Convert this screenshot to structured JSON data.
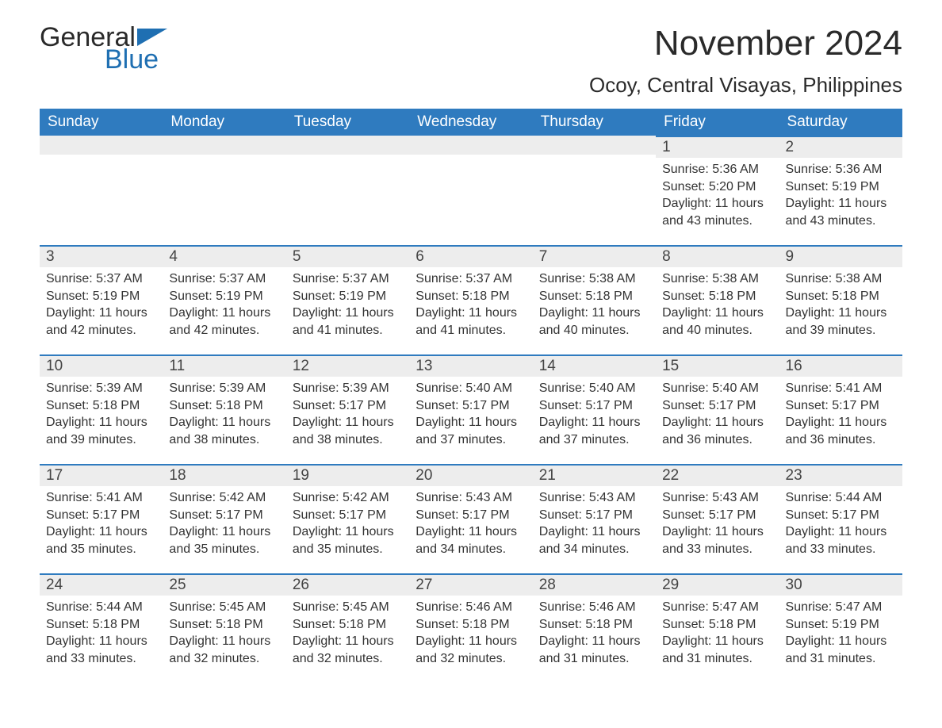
{
  "brand": {
    "word1": "General",
    "word2": "Blue",
    "flag_color": "#1f6fb2"
  },
  "title": "November 2024",
  "location": "Ocoy, Central Visayas, Philippines",
  "colors": {
    "header_bg": "#2f7bbf",
    "header_text": "#ffffff",
    "daybar_bg": "#ededed",
    "daybar_border": "#2f7bbf",
    "body_text": "#333333",
    "page_bg": "#ffffff"
  },
  "fonts": {
    "title_pt": 44,
    "location_pt": 26,
    "weekday_pt": 19,
    "daynum_pt": 19,
    "body_pt": 16
  },
  "weekdays": [
    "Sunday",
    "Monday",
    "Tuesday",
    "Wednesday",
    "Thursday",
    "Friday",
    "Saturday"
  ],
  "labels": {
    "sunrise": "Sunrise:",
    "sunset": "Sunset:",
    "daylight": "Daylight:"
  },
  "weeks": [
    [
      null,
      null,
      null,
      null,
      null,
      {
        "n": "1",
        "sunrise": "5:36 AM",
        "sunset": "5:20 PM",
        "daylight": "11 hours and 43 minutes."
      },
      {
        "n": "2",
        "sunrise": "5:36 AM",
        "sunset": "5:19 PM",
        "daylight": "11 hours and 43 minutes."
      }
    ],
    [
      {
        "n": "3",
        "sunrise": "5:37 AM",
        "sunset": "5:19 PM",
        "daylight": "11 hours and 42 minutes."
      },
      {
        "n": "4",
        "sunrise": "5:37 AM",
        "sunset": "5:19 PM",
        "daylight": "11 hours and 42 minutes."
      },
      {
        "n": "5",
        "sunrise": "5:37 AM",
        "sunset": "5:19 PM",
        "daylight": "11 hours and 41 minutes."
      },
      {
        "n": "6",
        "sunrise": "5:37 AM",
        "sunset": "5:18 PM",
        "daylight": "11 hours and 41 minutes."
      },
      {
        "n": "7",
        "sunrise": "5:38 AM",
        "sunset": "5:18 PM",
        "daylight": "11 hours and 40 minutes."
      },
      {
        "n": "8",
        "sunrise": "5:38 AM",
        "sunset": "5:18 PM",
        "daylight": "11 hours and 40 minutes."
      },
      {
        "n": "9",
        "sunrise": "5:38 AM",
        "sunset": "5:18 PM",
        "daylight": "11 hours and 39 minutes."
      }
    ],
    [
      {
        "n": "10",
        "sunrise": "5:39 AM",
        "sunset": "5:18 PM",
        "daylight": "11 hours and 39 minutes."
      },
      {
        "n": "11",
        "sunrise": "5:39 AM",
        "sunset": "5:18 PM",
        "daylight": "11 hours and 38 minutes."
      },
      {
        "n": "12",
        "sunrise": "5:39 AM",
        "sunset": "5:17 PM",
        "daylight": "11 hours and 38 minutes."
      },
      {
        "n": "13",
        "sunrise": "5:40 AM",
        "sunset": "5:17 PM",
        "daylight": "11 hours and 37 minutes."
      },
      {
        "n": "14",
        "sunrise": "5:40 AM",
        "sunset": "5:17 PM",
        "daylight": "11 hours and 37 minutes."
      },
      {
        "n": "15",
        "sunrise": "5:40 AM",
        "sunset": "5:17 PM",
        "daylight": "11 hours and 36 minutes."
      },
      {
        "n": "16",
        "sunrise": "5:41 AM",
        "sunset": "5:17 PM",
        "daylight": "11 hours and 36 minutes."
      }
    ],
    [
      {
        "n": "17",
        "sunrise": "5:41 AM",
        "sunset": "5:17 PM",
        "daylight": "11 hours and 35 minutes."
      },
      {
        "n": "18",
        "sunrise": "5:42 AM",
        "sunset": "5:17 PM",
        "daylight": "11 hours and 35 minutes."
      },
      {
        "n": "19",
        "sunrise": "5:42 AM",
        "sunset": "5:17 PM",
        "daylight": "11 hours and 35 minutes."
      },
      {
        "n": "20",
        "sunrise": "5:43 AM",
        "sunset": "5:17 PM",
        "daylight": "11 hours and 34 minutes."
      },
      {
        "n": "21",
        "sunrise": "5:43 AM",
        "sunset": "5:17 PM",
        "daylight": "11 hours and 34 minutes."
      },
      {
        "n": "22",
        "sunrise": "5:43 AM",
        "sunset": "5:17 PM",
        "daylight": "11 hours and 33 minutes."
      },
      {
        "n": "23",
        "sunrise": "5:44 AM",
        "sunset": "5:17 PM",
        "daylight": "11 hours and 33 minutes."
      }
    ],
    [
      {
        "n": "24",
        "sunrise": "5:44 AM",
        "sunset": "5:18 PM",
        "daylight": "11 hours and 33 minutes."
      },
      {
        "n": "25",
        "sunrise": "5:45 AM",
        "sunset": "5:18 PM",
        "daylight": "11 hours and 32 minutes."
      },
      {
        "n": "26",
        "sunrise": "5:45 AM",
        "sunset": "5:18 PM",
        "daylight": "11 hours and 32 minutes."
      },
      {
        "n": "27",
        "sunrise": "5:46 AM",
        "sunset": "5:18 PM",
        "daylight": "11 hours and 32 minutes."
      },
      {
        "n": "28",
        "sunrise": "5:46 AM",
        "sunset": "5:18 PM",
        "daylight": "11 hours and 31 minutes."
      },
      {
        "n": "29",
        "sunrise": "5:47 AM",
        "sunset": "5:18 PM",
        "daylight": "11 hours and 31 minutes."
      },
      {
        "n": "30",
        "sunrise": "5:47 AM",
        "sunset": "5:19 PM",
        "daylight": "11 hours and 31 minutes."
      }
    ]
  ]
}
